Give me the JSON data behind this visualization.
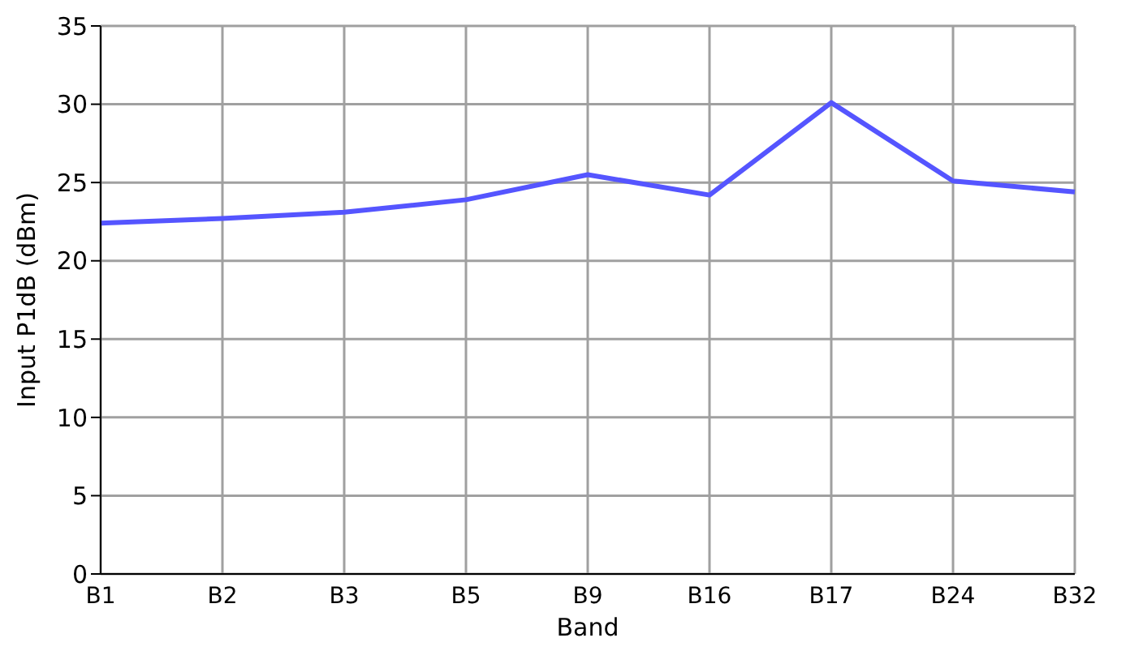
{
  "chart_data": {
    "type": "line",
    "xlabel": "Band",
    "ylabel": "Input P1dB (dBm)",
    "categories": [
      "B1",
      "B2",
      "B3",
      "B5",
      "B9",
      "B16",
      "B17",
      "B24",
      "B32"
    ],
    "series": [
      {
        "color": "#5555ff",
        "values": [
          22.4,
          22.7,
          23.1,
          23.9,
          25.5,
          24.2,
          30.1,
          25.1,
          24.4
        ]
      }
    ],
    "ylim": [
      0,
      35
    ],
    "yticks": [
      0,
      5,
      10,
      15,
      20,
      25,
      30,
      35
    ],
    "grid": true,
    "legend": false,
    "marker": "none",
    "line_style": "solid"
  }
}
